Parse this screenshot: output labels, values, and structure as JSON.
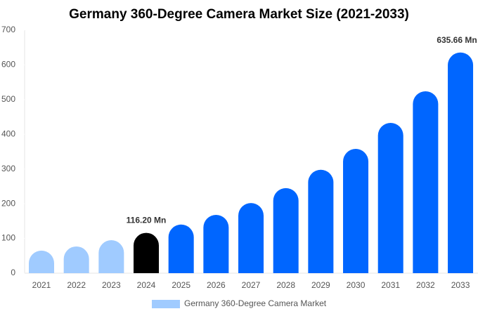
{
  "chart_data": {
    "type": "bar",
    "title": "Germany 360-Degree Camera Market Size (2021-2033)",
    "categories": [
      "2021",
      "2022",
      "2023",
      "2024",
      "2025",
      "2026",
      "2027",
      "2028",
      "2029",
      "2030",
      "2031",
      "2032",
      "2033"
    ],
    "series": [
      {
        "name": "Germany 360-Degree Camera Market",
        "color": "#a0cbff",
        "colors": [
          "#a0cbff",
          "#a0cbff",
          "#a0cbff",
          "#000000",
          "#0066ff",
          "#0066ff",
          "#0066ff",
          "#0066ff",
          "#0066ff",
          "#0066ff",
          "#0066ff",
          "#0066ff",
          "#0066ff"
        ],
        "values": [
          65,
          77,
          95,
          116.2,
          140,
          168,
          202,
          245,
          298,
          358,
          433,
          524,
          635.66
        ],
        "value_labels": [
          null,
          null,
          null,
          "116.20 Mn",
          null,
          null,
          null,
          null,
          null,
          null,
          null,
          null,
          "635.66 Mn"
        ]
      }
    ],
    "ylim": [
      0,
      700
    ],
    "yticks": [
      0,
      100,
      200,
      300,
      400,
      500,
      600,
      700
    ],
    "legend": "bottom"
  }
}
